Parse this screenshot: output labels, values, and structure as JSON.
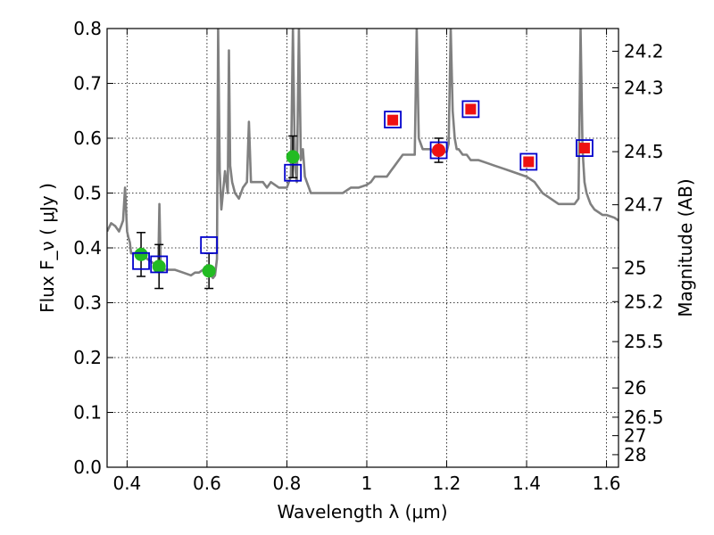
{
  "chart_data": {
    "type": "scatter",
    "xlabel": "Wavelength  λ (μm)",
    "ylabel": "Flux  F_ν  ( μJy )",
    "y2label": "Magnitude (AB)",
    "xlim": [
      0.35,
      1.63
    ],
    "ylim": [
      0.0,
      0.8
    ],
    "grid": true,
    "x_ticks": [
      0.4,
      0.6,
      0.8,
      1.0,
      1.2,
      1.4,
      1.6
    ],
    "x_tick_labels": [
      "0.4",
      "0.6",
      "0.8",
      "1",
      "1.2",
      "1.4",
      "1.6"
    ],
    "y_ticks": [
      0.0,
      0.1,
      0.2,
      0.3,
      0.4,
      0.5,
      0.6,
      0.7,
      0.8
    ],
    "y_tick_labels": [
      "0.0",
      "0.1",
      "0.2",
      "0.3",
      "0.4",
      "0.5",
      "0.6",
      "0.7",
      "0.8"
    ],
    "mag_ticks": [
      24.2,
      24.3,
      24.5,
      24.7,
      25,
      25.2,
      25.5,
      26,
      26.5,
      27,
      28
    ],
    "mag_tick_labels": [
      "24.2",
      "24.3",
      "24.5",
      "24.7",
      "25",
      "25.2",
      "25.5",
      "26",
      "26.5",
      "27",
      "28"
    ],
    "series": [
      {
        "kind": "line",
        "color": "#808080",
        "x": [
          0.35,
          0.36,
          0.37,
          0.38,
          0.385,
          0.39,
          0.395,
          0.4,
          0.403,
          0.407,
          0.41,
          0.42,
          0.43,
          0.44,
          0.45,
          0.46,
          0.47,
          0.478,
          0.481,
          0.484,
          0.49,
          0.5,
          0.52,
          0.54,
          0.56,
          0.57,
          0.58,
          0.59,
          0.6,
          0.61,
          0.615,
          0.62,
          0.625,
          0.628,
          0.632,
          0.636,
          0.64,
          0.645,
          0.652,
          0.655,
          0.658,
          0.663,
          0.67,
          0.68,
          0.69,
          0.7,
          0.705,
          0.71,
          0.72,
          0.73,
          0.74,
          0.75,
          0.76,
          0.78,
          0.8,
          0.81,
          0.815,
          0.82,
          0.825,
          0.83,
          0.835,
          0.84,
          0.845,
          0.85,
          0.855,
          0.86,
          0.865,
          0.87,
          0.88,
          0.9,
          0.92,
          0.94,
          0.96,
          0.98,
          1.0,
          1.01,
          1.02,
          1.03,
          1.04,
          1.05,
          1.06,
          1.07,
          1.08,
          1.09,
          1.1,
          1.12,
          1.125,
          1.13,
          1.14,
          1.15,
          1.16,
          1.17,
          1.18,
          1.19,
          1.2,
          1.205,
          1.21,
          1.215,
          1.22,
          1.225,
          1.23,
          1.24,
          1.25,
          1.26,
          1.28,
          1.3,
          1.32,
          1.34,
          1.36,
          1.38,
          1.4,
          1.42,
          1.44,
          1.46,
          1.48,
          1.5,
          1.52,
          1.53,
          1.535,
          1.54,
          1.545,
          1.55,
          1.555,
          1.56,
          1.57,
          1.58,
          1.59,
          1.6,
          1.62,
          1.63
        ],
        "y": [
          0.43,
          0.445,
          0.44,
          0.43,
          0.44,
          0.45,
          0.51,
          0.43,
          0.42,
          0.41,
          0.39,
          0.39,
          0.395,
          0.39,
          0.38,
          0.375,
          0.37,
          0.365,
          0.48,
          0.37,
          0.36,
          0.36,
          0.36,
          0.355,
          0.35,
          0.355,
          0.355,
          0.36,
          0.35,
          0.35,
          0.345,
          0.35,
          0.38,
          0.8,
          0.54,
          0.47,
          0.5,
          0.54,
          0.5,
          0.76,
          0.55,
          0.52,
          0.5,
          0.49,
          0.51,
          0.52,
          0.63,
          0.52,
          0.52,
          0.52,
          0.52,
          0.51,
          0.52,
          0.51,
          0.51,
          0.53,
          0.8,
          0.55,
          0.52,
          0.8,
          0.56,
          0.58,
          0.53,
          0.52,
          0.51,
          0.5,
          0.5,
          0.5,
          0.5,
          0.5,
          0.5,
          0.5,
          0.51,
          0.51,
          0.515,
          0.52,
          0.53,
          0.53,
          0.53,
          0.53,
          0.54,
          0.55,
          0.56,
          0.57,
          0.57,
          0.57,
          0.8,
          0.6,
          0.58,
          0.58,
          0.58,
          0.57,
          0.57,
          0.575,
          0.575,
          0.59,
          0.8,
          0.65,
          0.6,
          0.58,
          0.58,
          0.57,
          0.57,
          0.56,
          0.56,
          0.555,
          0.55,
          0.545,
          0.54,
          0.535,
          0.53,
          0.52,
          0.5,
          0.49,
          0.48,
          0.48,
          0.48,
          0.49,
          0.8,
          0.58,
          0.52,
          0.5,
          0.49,
          0.48,
          0.47,
          0.465,
          0.46,
          0.46,
          0.455,
          0.45
        ]
      },
      {
        "kind": "points",
        "marker": "circle",
        "color": "#22bb22",
        "x": [
          0.435,
          0.48,
          0.605,
          0.815
        ],
        "y": [
          0.388,
          0.366,
          0.358,
          0.566
        ],
        "yerr": [
          0.04,
          0.04,
          0.032,
          0.038
        ]
      },
      {
        "kind": "points",
        "marker": "circle",
        "color": "#ee1111",
        "x": [
          1.18
        ],
        "y": [
          0.578
        ],
        "yerr": [
          0.022
        ]
      },
      {
        "kind": "points",
        "marker": "square-filled",
        "color": "#ee1111",
        "x": [
          1.065,
          1.26,
          1.405,
          1.545
        ],
        "y": [
          0.633,
          0.653,
          0.557,
          0.582
        ]
      },
      {
        "kind": "points",
        "marker": "square-open",
        "color": "#0000cc",
        "x": [
          0.435,
          0.48,
          0.605,
          0.815,
          1.065,
          1.18,
          1.26,
          1.405,
          1.545
        ],
        "y": [
          0.376,
          0.37,
          0.405,
          0.537,
          0.634,
          0.578,
          0.653,
          0.557,
          0.582
        ]
      }
    ]
  }
}
